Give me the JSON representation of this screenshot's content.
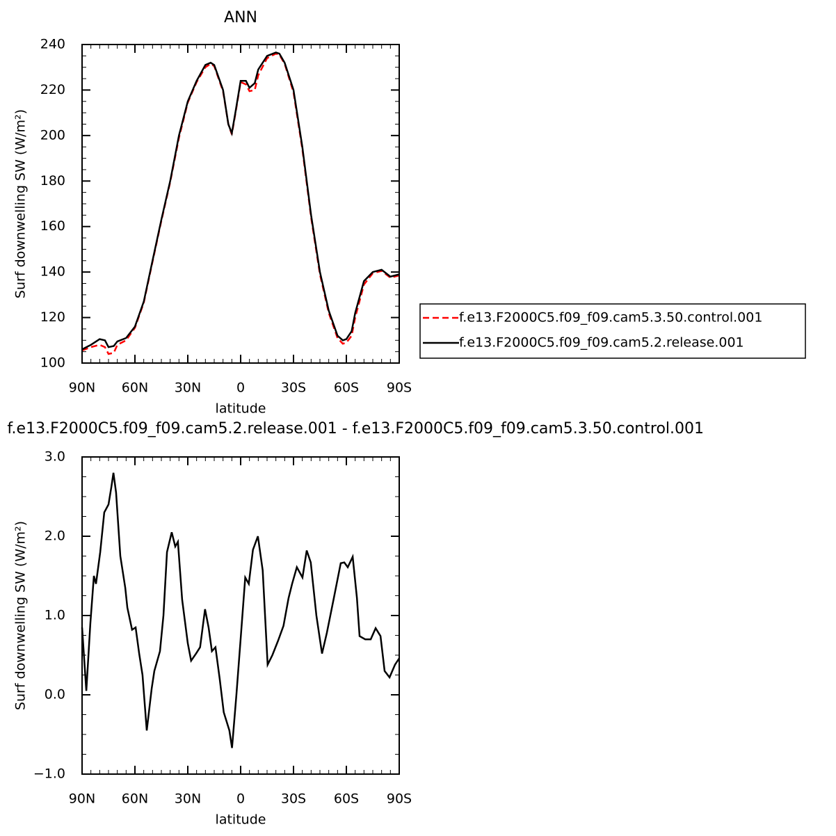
{
  "chart_data": [
    {
      "type": "line",
      "title": "ANN",
      "ylabel": "Surf downwelling SW (W/m²)",
      "xlabel": "latitude",
      "x": [
        90,
        85,
        80,
        77,
        75,
        72,
        70,
        65,
        60,
        55,
        50,
        45,
        40,
        35,
        30,
        25,
        20,
        17,
        15,
        10,
        7,
        5,
        3,
        0,
        -3,
        -5,
        -8,
        -10,
        -15,
        -20,
        -22,
        -25,
        -30,
        -35,
        -40,
        -45,
        -50,
        -55,
        -58,
        -60,
        -63,
        -65,
        -70,
        -75,
        -80,
        -85,
        -90
      ],
      "xlim": [
        90,
        -90
      ],
      "xticks": [
        {
          "value": 90,
          "label": "90N"
        },
        {
          "value": 60,
          "label": "60N"
        },
        {
          "value": 30,
          "label": "30N"
        },
        0,
        {
          "value": -30,
          "label": "30S"
        },
        {
          "value": -60,
          "label": "60S"
        },
        {
          "value": -90,
          "label": "90S"
        }
      ],
      "ylim": [
        100,
        240
      ],
      "yticks": [
        100,
        120,
        140,
        160,
        180,
        200,
        220,
        240
      ],
      "legend": "right",
      "series": [
        {
          "name": "f.e13.F2000C5.f09_f09.cam5.3.50.control.001",
          "color": "#ff0000",
          "line_style": "dashed",
          "values": [
            105.5,
            107,
            108,
            107,
            104,
            104.5,
            108,
            110,
            115.5,
            126.5,
            144.5,
            162.5,
            179.5,
            199,
            214.5,
            223.5,
            230,
            231.5,
            230.5,
            219.5,
            205,
            200.5,
            209.5,
            223.5,
            222.5,
            219.5,
            220,
            226.5,
            234,
            236,
            235.5,
            231.5,
            219,
            194,
            164,
            139,
            122,
            111,
            108.5,
            109,
            112,
            120,
            134.5,
            139.5,
            140.5,
            137.5,
            138.5
          ]
        },
        {
          "name": "f.e13.F2000C5.f09_f09.cam5.2.release.001",
          "color": "#000000",
          "line_style": "solid",
          "values": [
            106,
            108,
            110.5,
            110,
            107,
            107.5,
            109.5,
            111,
            116,
            127,
            145,
            163,
            180,
            200,
            215,
            224,
            231,
            232,
            231,
            220,
            205,
            201,
            210,
            224,
            224,
            221,
            223,
            229,
            235,
            236.5,
            236,
            232,
            220,
            195,
            165,
            140,
            123,
            112,
            110,
            110.5,
            114,
            122,
            136,
            140,
            141,
            138,
            139
          ]
        }
      ]
    },
    {
      "type": "line",
      "title": "f.e13.F2000C5.f09_f09.cam5.2.release.001 - f.e13.F2000C5.f09_f09.cam5.3.50.control.001",
      "ylabel": "Surf downwelling SW (W/m²)",
      "xlabel": "latitude",
      "x": [
        90,
        87.6,
        85.3,
        83.3,
        82.1,
        79.7,
        77.4,
        75,
        73.4,
        72.2,
        70.7,
        68.3,
        65.5,
        64.3,
        61.6,
        59.6,
        57.6,
        55.7,
        53.3,
        50.5,
        49,
        45.8,
        43.8,
        41.8,
        39.1,
        37.1,
        35.6,
        33.2,
        30,
        28.1,
        25.3,
        23,
        20.2,
        18.2,
        16.3,
        14.3,
        11.9,
        9.6,
        6.4,
        4.9,
        2.4,
        -0.3,
        -2.6,
        -4.6,
        -7,
        -9.8,
        -12.5,
        -15.3,
        -18,
        -21.2,
        -24.3,
        -27.2,
        -29.2,
        -31.9,
        -35.1,
        -37.5,
        -39.8,
        -43,
        -46.2,
        -48.9,
        -52.9,
        -56.8,
        -58.8,
        -60.8,
        -63.6,
        -66,
        -67.5,
        -70.7,
        -73.8,
        -76.6,
        -79.4,
        -81.7,
        -84.5,
        -87.6,
        -90
      ],
      "values": [
        0.85,
        0.05,
        0.9,
        1.5,
        1.4,
        1.8,
        2.3,
        2.4,
        2.62,
        2.8,
        2.55,
        1.75,
        1.35,
        1.1,
        0.82,
        0.85,
        0.52,
        0.25,
        -0.45,
        0.08,
        0.3,
        0.55,
        1.0,
        1.8,
        2.05,
        1.87,
        1.93,
        1.2,
        0.65,
        0.43,
        0.52,
        0.6,
        1.08,
        0.85,
        0.55,
        0.6,
        0.2,
        -0.22,
        -0.45,
        -0.67,
        0,
        0.8,
        1.48,
        1.4,
        1.83,
        2.0,
        1.57,
        0.38,
        0.5,
        0.68,
        0.87,
        1.22,
        1.4,
        1.61,
        1.48,
        1.82,
        1.67,
        1.0,
        0.52,
        0.78,
        1.22,
        1.66,
        1.67,
        1.61,
        1.74,
        1.22,
        0.74,
        0.7,
        0.7,
        0.84,
        0.74,
        0.3,
        0.22,
        0.38,
        0.46
      ],
      "color": "#000000",
      "xlim": [
        90,
        -90
      ],
      "xticks": [
        {
          "value": 90,
          "label": "90N"
        },
        {
          "value": 60,
          "label": "60N"
        },
        {
          "value": 30,
          "label": "30N"
        },
        0,
        {
          "value": -30,
          "label": "30S"
        },
        {
          "value": -60,
          "label": "60S"
        },
        {
          "value": -90,
          "label": "90S"
        }
      ],
      "ylim": [
        -1,
        3
      ],
      "yticks": [
        {
          "value": -1,
          "label": "−1.0"
        },
        {
          "value": 0,
          "label": "0.0"
        },
        {
          "value": 1,
          "label": "1.0"
        },
        {
          "value": 2,
          "label": "2.0"
        },
        {
          "value": 3,
          "label": "3.0"
        }
      ]
    }
  ]
}
